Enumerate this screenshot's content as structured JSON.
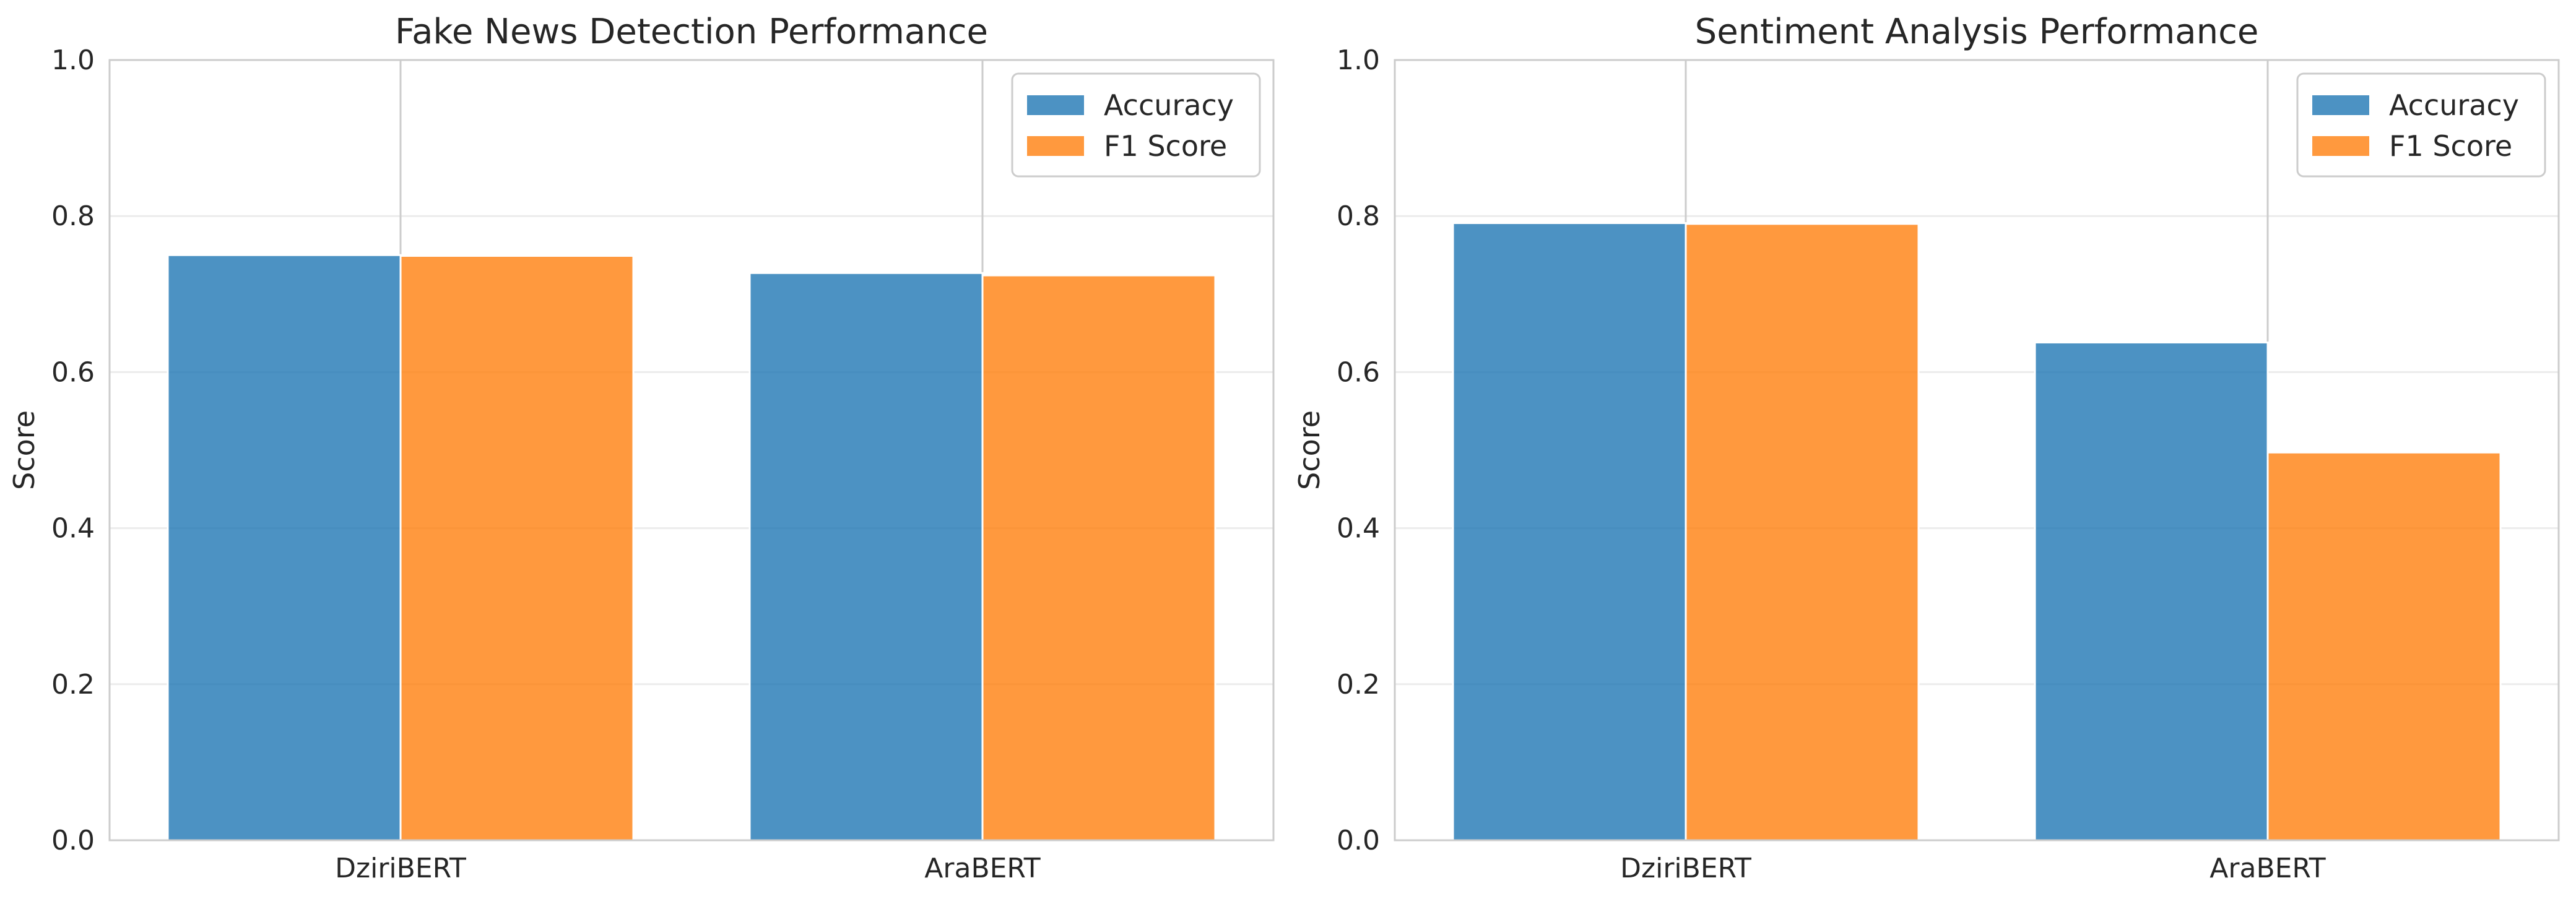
{
  "chart_data": [
    {
      "type": "bar",
      "title": "Fake News Detection Performance",
      "xlabel": "",
      "ylabel": "Score",
      "categories": [
        "DziriBERT",
        "AraBERT"
      ],
      "series": [
        {
          "name": "Accuracy",
          "values": [
            0.75,
            0.727
          ],
          "color": "#1f77b4"
        },
        {
          "name": "F1 Score",
          "values": [
            0.749,
            0.724
          ],
          "color": "#ff7f0e"
        }
      ],
      "ylim": [
        0,
        1.0
      ],
      "yticks": [
        "0.0",
        "0.2",
        "0.4",
        "0.6",
        "0.8",
        "1.0"
      ],
      "grid": true,
      "legend_position": "top-right"
    },
    {
      "type": "bar",
      "title": "Sentiment Analysis Performance",
      "xlabel": "",
      "ylabel": "Score",
      "categories": [
        "DziriBERT",
        "AraBERT"
      ],
      "series": [
        {
          "name": "Accuracy",
          "values": [
            0.791,
            0.638
          ],
          "color": "#1f77b4"
        },
        {
          "name": "F1 Score",
          "values": [
            0.79,
            0.497
          ],
          "color": "#ff7f0e"
        }
      ],
      "ylim": [
        0,
        1.0
      ],
      "yticks": [
        "0.0",
        "0.2",
        "0.4",
        "0.6",
        "0.8",
        "1.0"
      ],
      "grid": true,
      "legend_position": "top-right"
    }
  ]
}
